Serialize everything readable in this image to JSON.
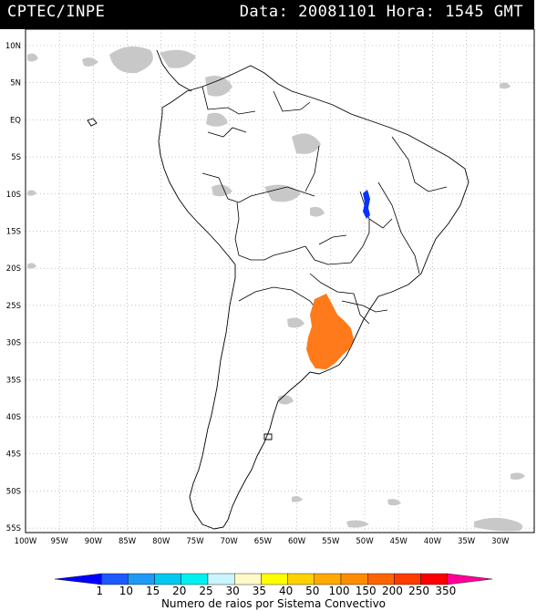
{
  "header": {
    "left": "CPTEC/INPE",
    "right": "Data: 20081101 Hora: 1545 GMT"
  },
  "axes": {
    "lat_labels": [
      "10N",
      "5N",
      "EQ",
      "5S",
      "10S",
      "15S",
      "20S",
      "25S",
      "30S",
      "35S",
      "40S",
      "45S",
      "50S",
      "55S"
    ],
    "lon_labels": [
      "100W",
      "95W",
      "90W",
      "85W",
      "80W",
      "75W",
      "70W",
      "65W",
      "60W",
      "55W",
      "50W",
      "45W",
      "40W",
      "35W",
      "30W"
    ]
  },
  "legend": {
    "title": "Numero de raios por Sistema Convectivo",
    "labels": [
      "1",
      "10",
      "15",
      "20",
      "25",
      "30",
      "35",
      "40",
      "50",
      "100",
      "150",
      "200",
      "250",
      "350"
    ],
    "colors": [
      "#0000ff",
      "#1e5aff",
      "#1e9bf5",
      "#00c8f0",
      "#00f0f0",
      "#c8f5ff",
      "#fffac8",
      "#ffff00",
      "#ffd200",
      "#ffaa00",
      "#ff8c00",
      "#ff6400",
      "#ff3c00",
      "#ff0000",
      "#ff0096"
    ]
  },
  "map": {
    "colors": {
      "cloud": "#c8c8c8",
      "lightning_low": "#0a32ff",
      "lightning_high": "#ff7a1a"
    }
  }
}
